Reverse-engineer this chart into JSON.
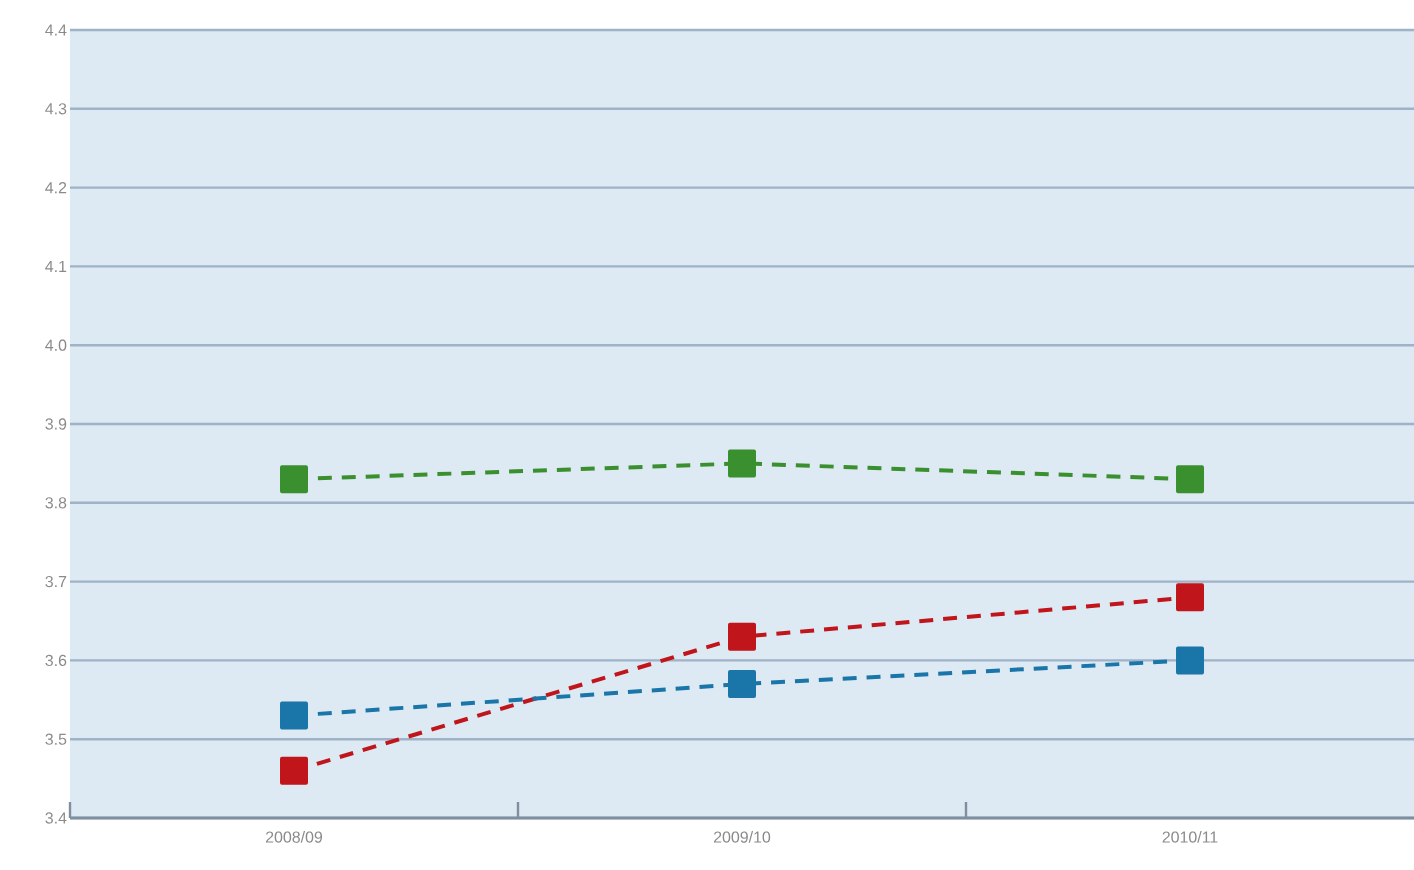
{
  "chart_data": {
    "type": "line",
    "categories": [
      "2008/09",
      "2009/10",
      "2010/11"
    ],
    "series": [
      {
        "color": "#3a8f2e",
        "values": [
          3.83,
          3.85,
          3.83
        ]
      },
      {
        "color": "#c0151a",
        "values": [
          3.46,
          3.63,
          3.68
        ]
      },
      {
        "color": "#1a75a8",
        "values": [
          3.53,
          3.57,
          3.6
        ]
      }
    ],
    "ylim": [
      3.4,
      4.4
    ],
    "yticks": [
      3.4,
      3.5,
      3.6,
      3.7,
      3.8,
      3.9,
      {
        "value": 4.0,
        "label": "4.0"
      },
      4.1,
      4.2,
      4.3,
      4.4
    ],
    "grid": "y",
    "marker": "square",
    "line_style": "dashed"
  }
}
